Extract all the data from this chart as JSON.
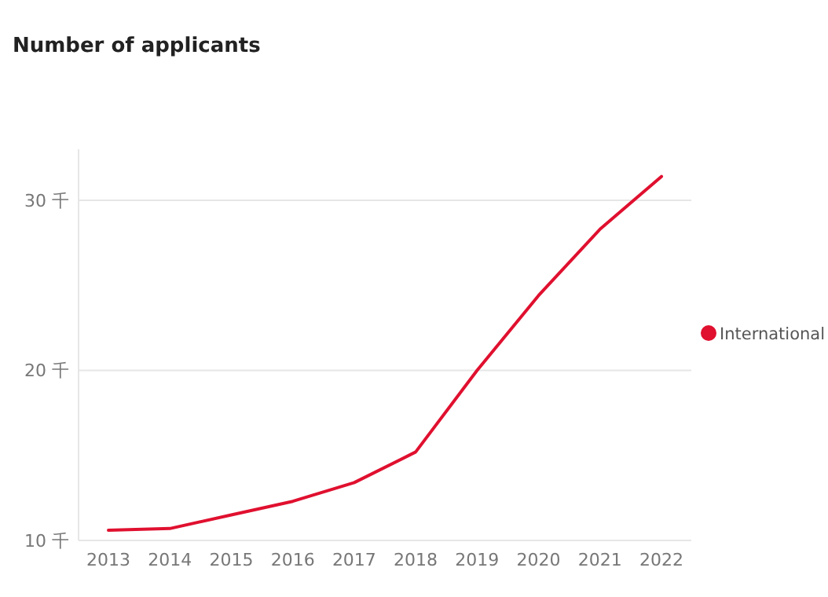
{
  "chart_data": {
    "type": "line",
    "title": "Number of applicants",
    "categories": [
      "2013",
      "2014",
      "2015",
      "2016",
      "2017",
      "2018",
      "2019",
      "2020",
      "2021",
      "2022"
    ],
    "series": [
      {
        "name": "International",
        "color": "#e0102f",
        "values": [
          10.6,
          10.7,
          11.5,
          12.3,
          13.4,
          15.2,
          20.0,
          24.4,
          28.3,
          31.4
        ]
      }
    ],
    "ylim": [
      10,
      33
    ],
    "yticks": [
      {
        "value": 10,
        "label": "10 千"
      },
      {
        "value": 20,
        "label": "20 千"
      },
      {
        "value": 30,
        "label": "30 千"
      }
    ],
    "grid": "y",
    "legend": "right",
    "marker": "none",
    "line_style": "solid"
  }
}
